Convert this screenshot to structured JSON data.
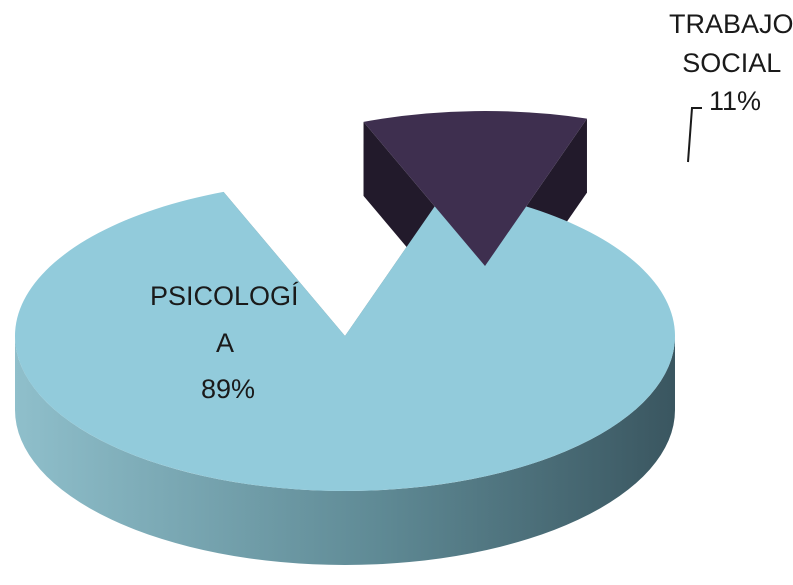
{
  "chart_data": {
    "type": "pie",
    "style": "3d-exploded",
    "title": "",
    "slices": [
      {
        "category_lines": [
          "PSICOLOGÍ",
          "A"
        ],
        "percent_label": "89%",
        "value": 89,
        "color": "#92CBDB"
      },
      {
        "category_lines": [
          "TRABAJO",
          "SOCIAL"
        ],
        "percent_label": "11%",
        "value": 11,
        "color": "#3E2F4F"
      }
    ],
    "legend": "none"
  }
}
